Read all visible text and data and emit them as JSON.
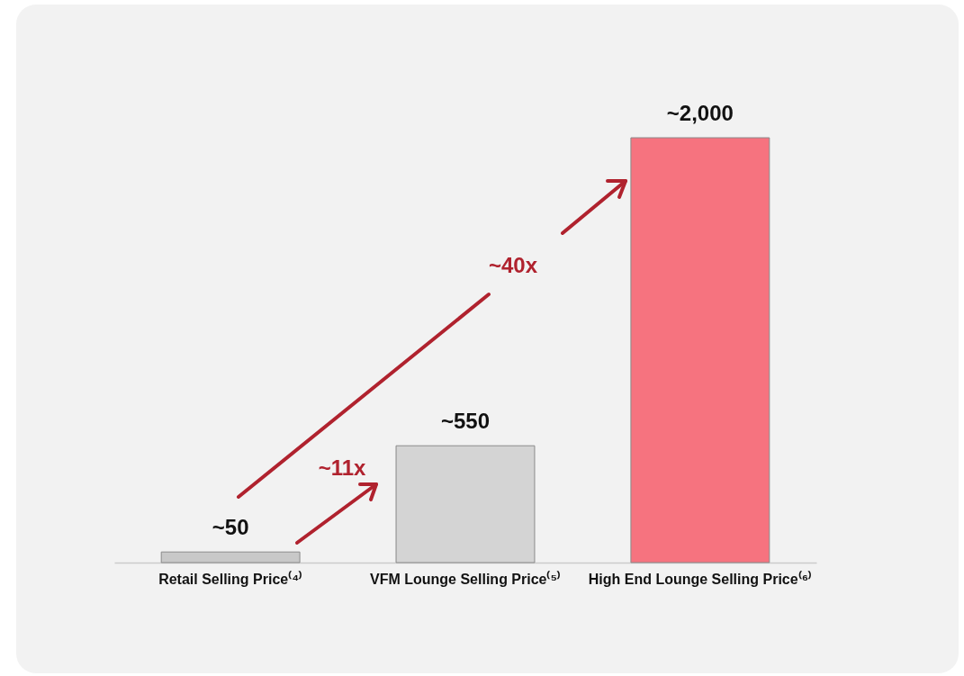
{
  "chart_data": {
    "type": "bar",
    "categories": [
      "Retail Selling Price⁽⁴⁾",
      "VFM Lounge Selling Price⁽⁵⁾",
      "High End Lounge Selling Price⁽⁶⁾"
    ],
    "values": [
      50,
      550,
      2000
    ],
    "colors": [
      "#c8c8c8",
      "#d4d4d4",
      "#f6737f"
    ],
    "value_labels": [
      "~50",
      "~550",
      "~2,000"
    ],
    "annotations": [
      "~11x",
      "~40x"
    ],
    "grid": false,
    "legend": false
  }
}
